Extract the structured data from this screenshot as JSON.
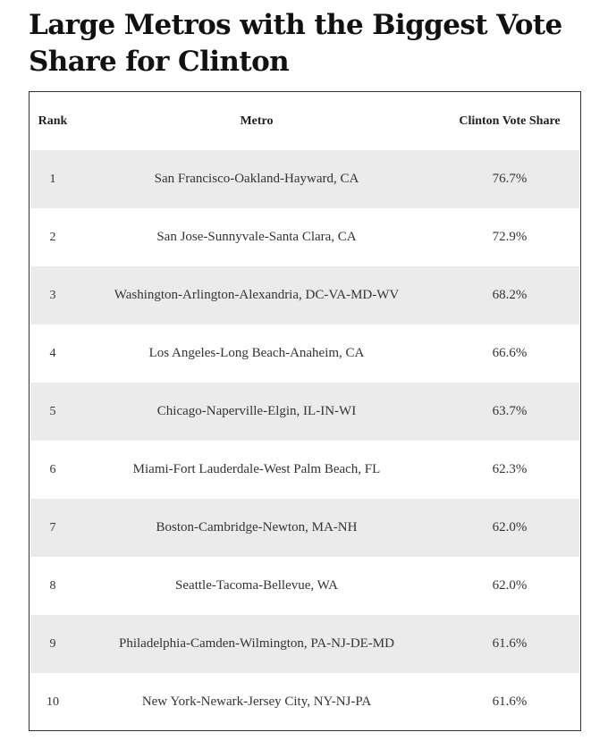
{
  "title": "Large Metros with the Biggest Vote Share for Clinton",
  "colors": {
    "shaded_row": "#ebebeb",
    "plain_row": "#ffffff",
    "border": "#333333",
    "text": "#222222"
  },
  "chart_data": {
    "type": "table",
    "title": "Large Metros with the Biggest Vote Share for Clinton",
    "columns": [
      "Rank",
      "Metro",
      "Clinton Vote Share"
    ],
    "rows": [
      {
        "rank": "1",
        "metro": "San Francisco-Oakland-Hayward, CA",
        "share": "76.7%"
      },
      {
        "rank": "2",
        "metro": "San Jose-Sunnyvale-Santa Clara, CA",
        "share": "72.9%"
      },
      {
        "rank": "3",
        "metro": "Washington-Arlington-Alexandria, DC-VA-MD-WV",
        "share": "68.2%"
      },
      {
        "rank": "4",
        "metro": "Los Angeles-Long Beach-Anaheim, CA",
        "share": "66.6%"
      },
      {
        "rank": "5",
        "metro": "Chicago-Naperville-Elgin, IL-IN-WI",
        "share": "63.7%"
      },
      {
        "rank": "6",
        "metro": "Miami-Fort Lauderdale-West Palm Beach, FL",
        "share": "62.3%"
      },
      {
        "rank": "7",
        "metro": "Boston-Cambridge-Newton, MA-NH",
        "share": "62.0%"
      },
      {
        "rank": "8",
        "metro": "Seattle-Tacoma-Bellevue, WA",
        "share": "62.0%"
      },
      {
        "rank": "9",
        "metro": "Philadelphia-Camden-Wilmington, PA-NJ-DE-MD",
        "share": "61.6%"
      },
      {
        "rank": "10",
        "metro": "New York-Newark-Jersey City, NY-NJ-PA",
        "share": "61.6%"
      }
    ]
  }
}
